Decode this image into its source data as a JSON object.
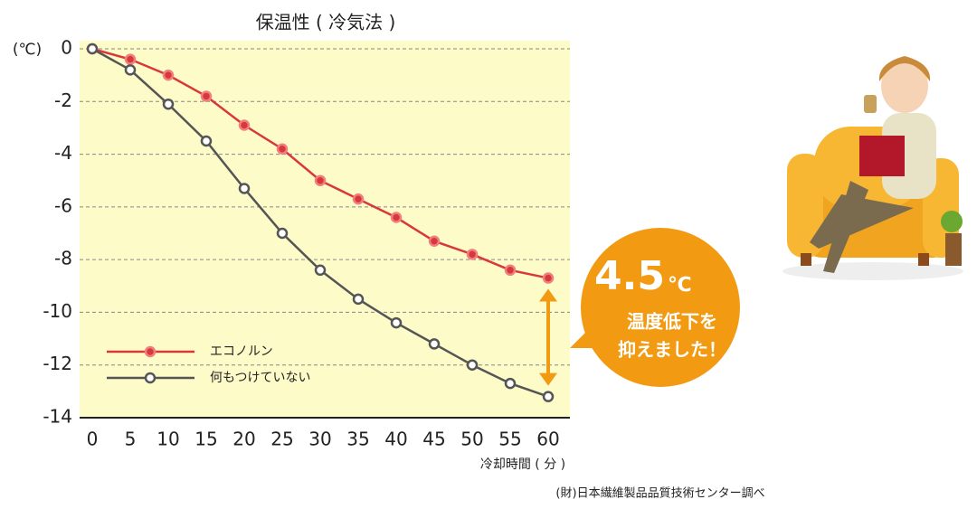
{
  "chart_data": {
    "type": "line",
    "title": "保温性 ( 冷気法 )",
    "y_label": "(℃)",
    "x_label": "冷却時間 ( 分 )",
    "source": "(財)日本繊維製品品質技術センター調べ",
    "x": [
      0,
      5,
      10,
      15,
      20,
      25,
      30,
      35,
      40,
      45,
      50,
      55,
      60
    ],
    "series": [
      {
        "name": "エコノルン",
        "color": "#d9383a",
        "values": [
          0,
          -0.4,
          -1.0,
          -1.8,
          -2.9,
          -3.8,
          -5.0,
          -5.7,
          -6.4,
          -7.3,
          -7.8,
          -8.4,
          -8.7
        ]
      },
      {
        "name": "何もつけていない",
        "color": "#555555",
        "values": [
          0,
          -0.8,
          -2.1,
          -3.5,
          -5.3,
          -7.0,
          -8.4,
          -9.5,
          -10.4,
          -11.2,
          -12.0,
          -12.7,
          -13.2
        ]
      }
    ],
    "xlim": [
      0,
      60
    ],
    "xticks": [
      0,
      5,
      10,
      15,
      20,
      25,
      30,
      35,
      40,
      45,
      50,
      55,
      60
    ],
    "ylim": [
      -14,
      0
    ],
    "yticks": [
      0,
      -2,
      -4,
      -6,
      -8,
      -10,
      -12,
      -14
    ],
    "grid": true,
    "legend": "lower left",
    "callout": {
      "value": "4.5",
      "unit": "℃",
      "lines": [
        "温度低下を",
        "抑えました！"
      ]
    }
  }
}
